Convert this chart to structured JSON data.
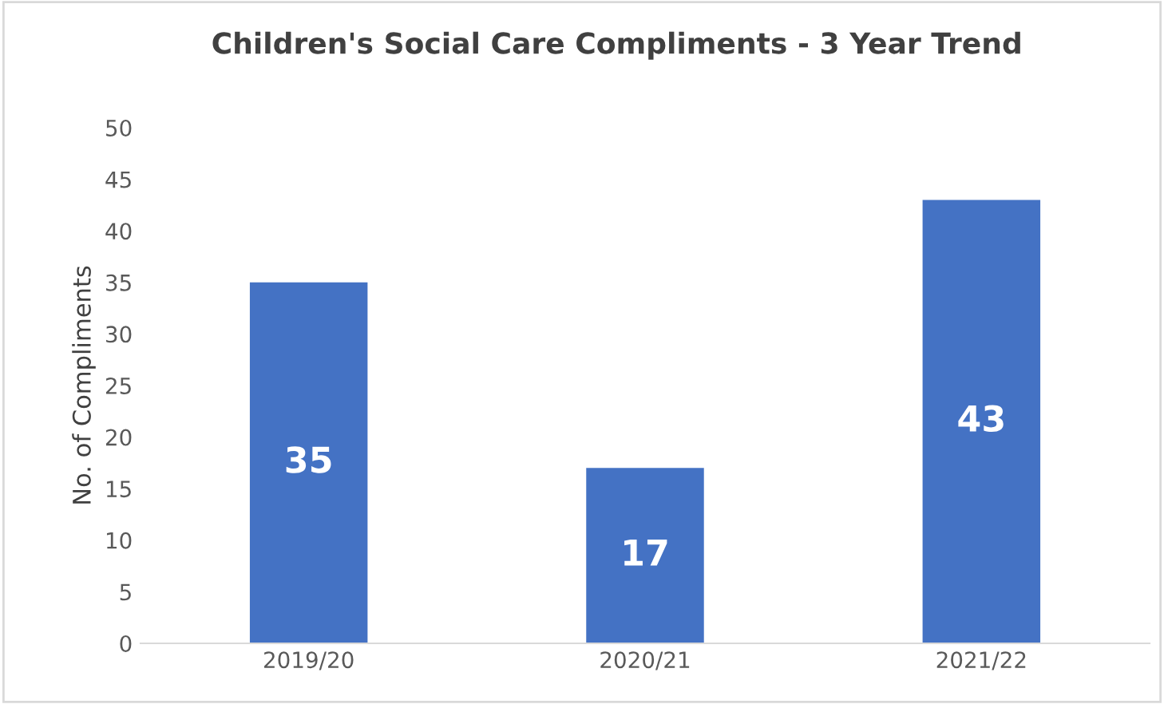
{
  "chart_data": {
    "type": "bar",
    "title": "Children's Social Care Compliments - 3 Year Trend",
    "ylabel": "No. of Compliments",
    "categories": [
      "2019/20",
      "2020/21",
      "2021/22"
    ],
    "values": [
      35,
      17,
      43
    ],
    "color": "#4472c4",
    "ylim": [
      0,
      50
    ],
    "yticks": [
      0,
      5,
      10,
      15,
      20,
      25,
      30,
      35,
      40,
      45,
      50
    ],
    "grid": false,
    "data_labels": true
  }
}
